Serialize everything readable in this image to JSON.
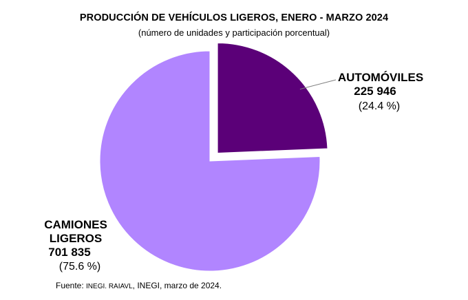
{
  "title": "PRODUCCIÓN DE VEHÍCULOS LIGEROS, ENERO - MARZO 2024",
  "subtitle": "(número de unidades y participación porcentual)",
  "source": {
    "prefix": "Fuente: ",
    "small": "INEGI. RAIAVL",
    "suffix": ", INEGI, marzo de 2024."
  },
  "chart_data": {
    "type": "pie",
    "title": "PRODUCCIÓN DE VEHÍCULOS LIGEROS, ENERO - MARZO 2024",
    "subtitle": "(número de unidades y participación porcentual)",
    "slices": [
      {
        "label": "AUTOMÓVILES",
        "value_text": "225 946",
        "value": 225946,
        "percent": 24.4,
        "percent_text": "(24.4 %)",
        "color": "#5b0078",
        "exploded": true
      },
      {
        "label_lines": [
          "CAMIONES",
          "LIGEROS"
        ],
        "label": "CAMIONES LIGEROS",
        "value_text": "701 835",
        "value": 701835,
        "percent": 75.6,
        "percent_text": "(75.6 %)",
        "color": "#b185ff",
        "exploded": false
      }
    ]
  }
}
